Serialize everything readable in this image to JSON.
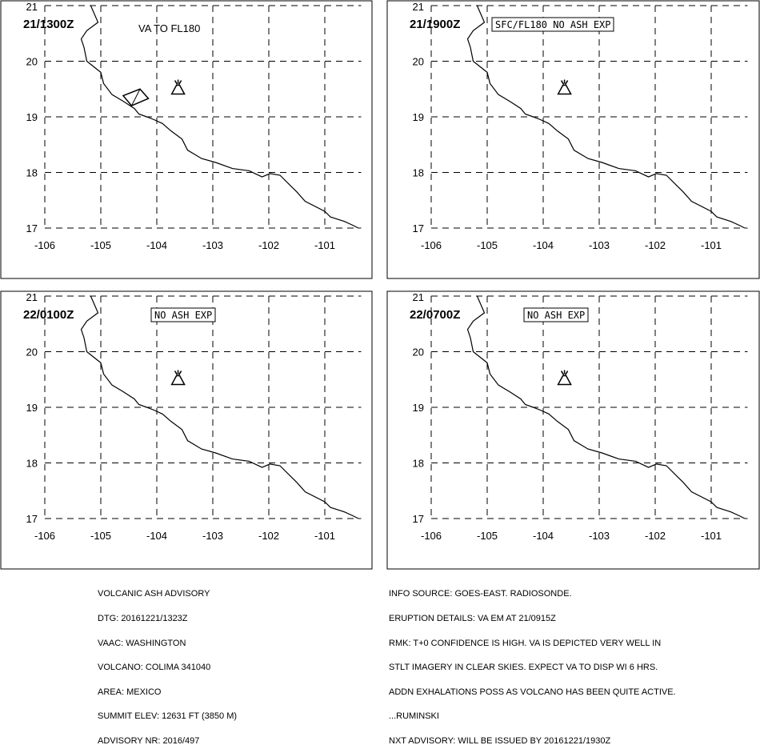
{
  "panels": [
    {
      "time_label": "21/1300Z",
      "note": "VA TO FL180",
      "note_boxed": false,
      "has_ash_area": true
    },
    {
      "time_label": "21/1900Z",
      "note": "SFC/FL180 NO ASH EXP",
      "note_boxed": true,
      "has_ash_area": false
    },
    {
      "time_label": "22/0100Z",
      "note": "NO ASH EXP",
      "note_boxed": true,
      "has_ash_area": false
    },
    {
      "time_label": "22/0700Z",
      "note": "NO ASH EXP",
      "note_boxed": true,
      "has_ash_area": false
    }
  ],
  "axes": {
    "lon_ticks": [
      "-106",
      "-105",
      "-104",
      "-103",
      "-102",
      "-101"
    ],
    "lat_ticks": [
      "21",
      "20",
      "19",
      "18",
      "17"
    ],
    "lon_range": [
      -106,
      -100.2
    ],
    "lat_range": [
      16.8,
      21.0
    ]
  },
  "volcano": {
    "name": "COLIMA",
    "lon": -103.62,
    "lat": 19.51
  },
  "coastline": [
    [
      -105.18,
      21.0
    ],
    [
      -105.05,
      20.7
    ],
    [
      -105.25,
      20.55
    ],
    [
      -105.35,
      20.4
    ],
    [
      -105.3,
      20.25
    ],
    [
      -105.25,
      20.0
    ],
    [
      -105.0,
      19.8
    ],
    [
      -104.95,
      19.6
    ],
    [
      -104.8,
      19.4
    ],
    [
      -104.6,
      19.28
    ],
    [
      -104.4,
      19.15
    ],
    [
      -104.32,
      19.05
    ],
    [
      -104.18,
      19.0
    ],
    [
      -104.05,
      18.95
    ],
    [
      -103.9,
      18.88
    ],
    [
      -103.75,
      18.75
    ],
    [
      -103.55,
      18.6
    ],
    [
      -103.45,
      18.4
    ],
    [
      -103.2,
      18.25
    ],
    [
      -102.95,
      18.18
    ],
    [
      -102.65,
      18.07
    ],
    [
      -102.35,
      18.03
    ],
    [
      -102.12,
      17.92
    ],
    [
      -101.98,
      17.98
    ],
    [
      -101.8,
      17.95
    ],
    [
      -101.6,
      17.75
    ],
    [
      -101.5,
      17.65
    ],
    [
      -101.35,
      17.48
    ],
    [
      -101.0,
      17.3
    ],
    [
      -100.9,
      17.2
    ],
    [
      -100.65,
      17.12
    ],
    [
      -100.5,
      17.05
    ],
    [
      -100.4,
      17.0
    ]
  ],
  "ash_area_t0": [
    [
      -104.6,
      19.38
    ],
    [
      -104.3,
      19.5
    ],
    [
      -104.15,
      19.33
    ],
    [
      -104.45,
      19.2
    ]
  ],
  "advisory_left": [
    "VOLCANIC ASH ADVISORY",
    "DTG: 20161221/1323Z",
    "VAAC: WASHINGTON",
    "VOLCANO: COLIMA 341040",
    "AREA: MEXICO",
    "SUMMIT ELEV: 12631 FT (3850 M)",
    "ADVISORY NR: 2016/497"
  ],
  "advisory_right": [
    "INFO SOURCE: GOES-EAST. RADIOSONDE.",
    "ERUPTION DETAILS: VA EM AT 21/0915Z",
    "RMK: T+0 CONFIDENCE IS HIGH. VA IS DEPICTED VERY WELL IN",
    "STLT IMAGERY IN CLEAR SKIES. EXPECT VA TO DISP WI 6 HRS.",
    "ADDN EXHALATIONS POSS AS VOLCANO HAS BEEN QUITE ACTIVE.",
    "...RUMINSKI",
    "NXT ADVISORY: WILL BE ISSUED BY 20161221/1930Z"
  ]
}
